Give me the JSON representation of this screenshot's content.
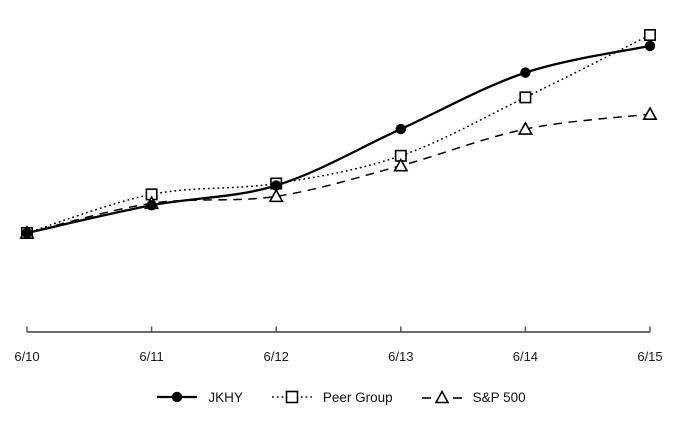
{
  "chart_data": {
    "type": "line",
    "categories": [
      "6/10",
      "6/11",
      "6/12",
      "6/13",
      "6/14",
      "6/15"
    ],
    "series": [
      {
        "name": "JKHY",
        "line_style": "solid",
        "marker": "filled-circle",
        "values": [
          100,
          128,
          148,
          205,
          262,
          289
        ]
      },
      {
        "name": "Peer Group",
        "line_style": "dotted",
        "marker": "open-square",
        "values": [
          100,
          139,
          150,
          178,
          237,
          300
        ]
      },
      {
        "name": "S&P 500",
        "line_style": "dashed",
        "marker": "open-triangle",
        "values": [
          100,
          130,
          137,
          168,
          205,
          220
        ]
      }
    ],
    "y_axis_visible": false,
    "implied_base_value": 100,
    "ylim": [
      0,
      310
    ],
    "grid": false,
    "legend_position": "bottom",
    "colors": {
      "series": "#000000",
      "axis": "#555555",
      "tick_label": "#1a1a1a",
      "marker_fill_open": "#ffffff",
      "background": "#ffffff"
    }
  }
}
